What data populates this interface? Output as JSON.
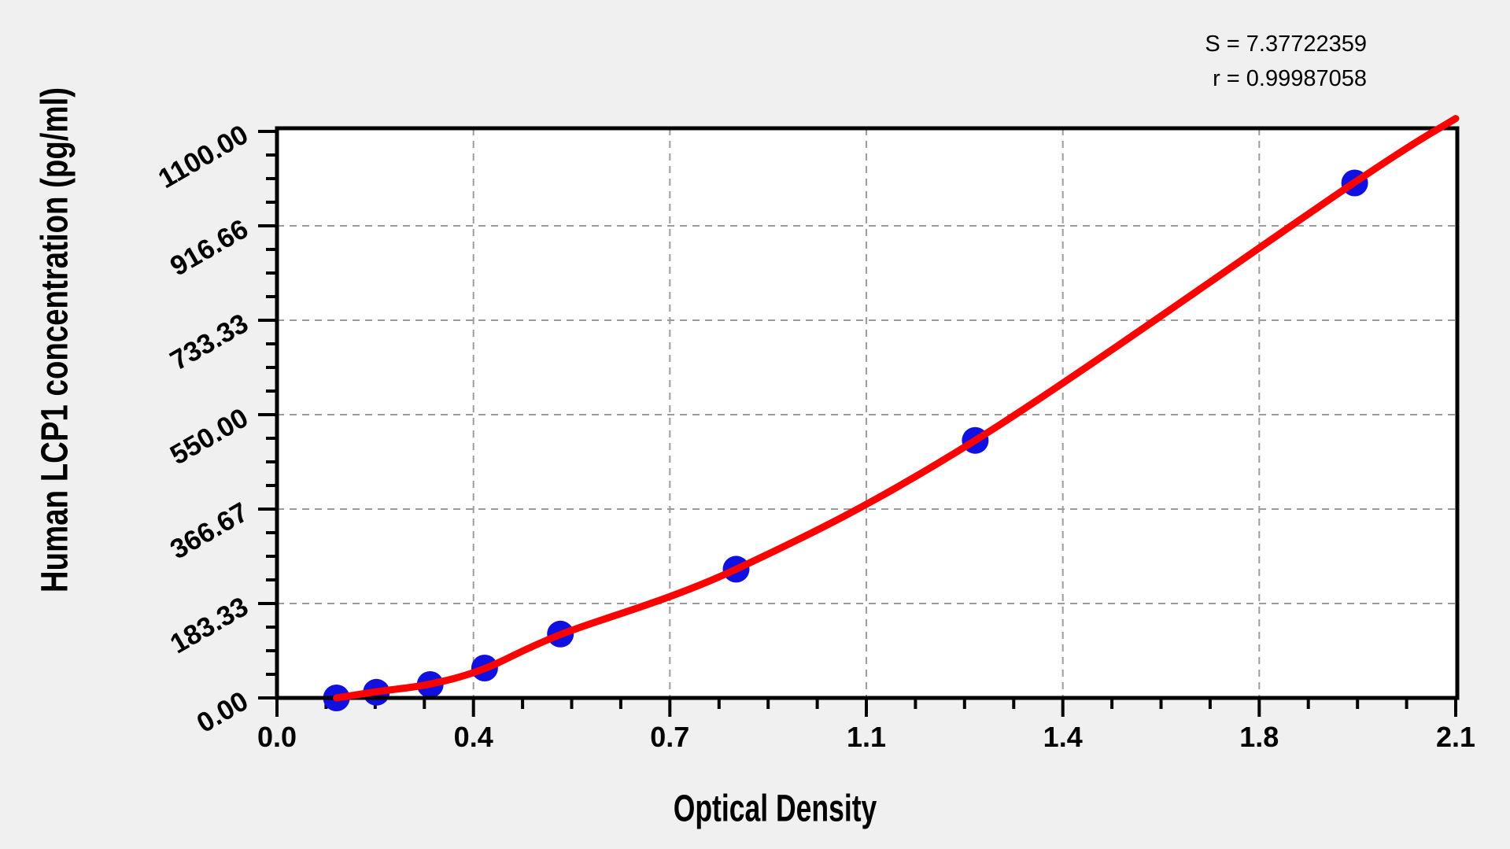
{
  "page": {
    "background": "#f0f0f0",
    "plot_background": "#ffffff"
  },
  "stats": {
    "s_line": "S = 7.37722359",
    "r_line": "r = 0.99987058"
  },
  "chart_data": {
    "type": "scatter",
    "title": "",
    "xlabel": "Optical Density",
    "ylabel": "Human LCP1 concentration (pg/ml)",
    "xlim": [
      0,
      2.1
    ],
    "ylim": [
      0,
      1100
    ],
    "x_tick_values": [
      0,
      0.35,
      0.7,
      1.05,
      1.4,
      1.75,
      2.1
    ],
    "x_tick_labels": [
      "0.0",
      "0.4",
      "0.7",
      "1.1",
      "1.4",
      "1.8",
      "2.1"
    ],
    "y_tick_values": [
      0,
      183.33,
      366.67,
      550.0,
      733.33,
      916.66,
      1100.0
    ],
    "y_tick_labels": [
      "0.00",
      "183.33",
      "366.67",
      "550.00",
      "733.33",
      "916.66",
      "1100.00"
    ],
    "minor_divisions_per_major": 4,
    "grid": {
      "visible": true,
      "style": "dashed",
      "color": "#9c9c9c",
      "at": "major-ticks"
    },
    "legend": {
      "visible": false
    },
    "series": [
      {
        "name": "standard-points",
        "type": "scatter",
        "marker": "circle",
        "color": "#1010e0",
        "x_is": "optical_density",
        "y_is": "concentration_pg_ml",
        "points": [
          [
            0.106,
            0
          ],
          [
            0.177,
            11
          ],
          [
            0.273,
            26
          ],
          [
            0.37,
            58
          ],
          [
            0.505,
            124
          ],
          [
            0.818,
            250
          ],
          [
            1.244,
            500
          ],
          [
            1.92,
            1000
          ]
        ]
      }
    ],
    "fit_curve": {
      "name": "regression-curve",
      "color": "#ff0000",
      "points": [
        [
          0.106,
          0
        ],
        [
          0.177,
          12
        ],
        [
          0.273,
          27
        ],
        [
          0.37,
          57
        ],
        [
          0.505,
          123
        ],
        [
          0.818,
          250
        ],
        [
          1.244,
          500
        ],
        [
          1.92,
          1001
        ],
        [
          2.1,
          1125
        ]
      ]
    }
  }
}
